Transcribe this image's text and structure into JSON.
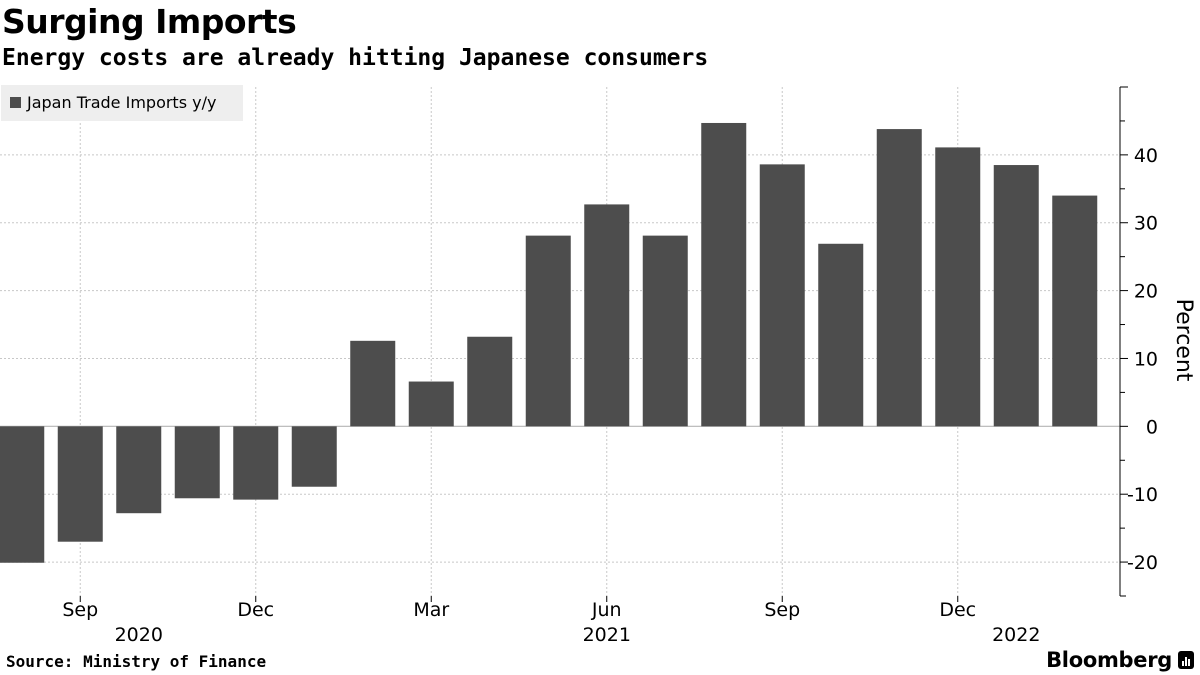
{
  "header": {
    "title": "Surging Imports",
    "subtitle": "Energy costs are already hitting Japanese consumers"
  },
  "footer": {
    "source": "Source: Ministry of Finance",
    "brand": "Bloomberg"
  },
  "colors": {
    "bar": "#4d4d4d",
    "grid": "#c8c8c8",
    "legend_bg": "#eeeeee",
    "text": "#000000"
  },
  "chart_data": {
    "type": "bar",
    "title": "Surging Imports",
    "subtitle": "Energy costs are already hitting Japanese consumers",
    "xlabel": "",
    "ylabel": "Percent",
    "ylim": [
      -25,
      50
    ],
    "yticks": [
      -20,
      -10,
      0,
      10,
      20,
      30,
      40
    ],
    "ytick_labels": [
      "-20",
      "-10",
      "0",
      "10",
      "20",
      "30",
      "40"
    ],
    "grid": true,
    "legend_position": "top-left",
    "categories": [
      "2020-08",
      "2020-09",
      "2020-10",
      "2020-11",
      "2020-12",
      "2021-01",
      "2021-02",
      "2021-03",
      "2021-04",
      "2021-05",
      "2021-06",
      "2021-07",
      "2021-08",
      "2021-09",
      "2021-10",
      "2021-11",
      "2021-12",
      "2022-01",
      "2022-02"
    ],
    "series": [
      {
        "name": "Japan Trade Imports y/y",
        "values": [
          -20.1,
          -17.0,
          -12.8,
          -10.6,
          -10.8,
          -8.9,
          12.6,
          6.6,
          13.2,
          28.1,
          32.7,
          28.1,
          44.7,
          38.6,
          26.9,
          43.8,
          41.1,
          38.5,
          34.0
        ]
      }
    ],
    "x_tick_labels": [
      {
        "category": "2020-09",
        "label": "Sep"
      },
      {
        "category": "2020-12",
        "label": "Dec"
      },
      {
        "category": "2021-03",
        "label": "Mar"
      },
      {
        "category": "2021-06",
        "label": "Jun"
      },
      {
        "category": "2021-09",
        "label": "Sep"
      },
      {
        "category": "2021-12",
        "label": "Dec"
      }
    ],
    "year_labels": [
      {
        "category": "2020-10",
        "label": "2020"
      },
      {
        "category": "2021-06",
        "label": "2021"
      },
      {
        "category": "2022-01",
        "label": "2022"
      }
    ]
  }
}
